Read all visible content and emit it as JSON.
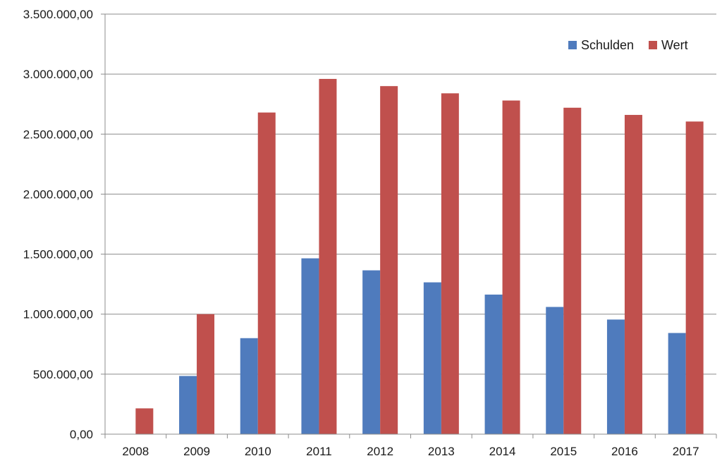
{
  "chart_data": {
    "type": "bar",
    "title": "",
    "xlabel": "",
    "ylabel": "",
    "categories": [
      "2008",
      "2009",
      "2010",
      "2011",
      "2012",
      "2013",
      "2014",
      "2015",
      "2016",
      "2017"
    ],
    "series": [
      {
        "name": "Schulden",
        "color": "#4f7bbd",
        "values": [
          0,
          485000,
          800000,
          1465000,
          1365000,
          1265000,
          1163000,
          1060000,
          955000,
          843000
        ]
      },
      {
        "name": "Wert",
        "color": "#c0504d",
        "values": [
          215000,
          1000000,
          2680000,
          2960000,
          2900000,
          2840000,
          2780000,
          2720000,
          2660000,
          2605000
        ]
      }
    ],
    "ylim": [
      0,
      3500000
    ],
    "yticks": [
      0,
      500000,
      1000000,
      1500000,
      2000000,
      2500000,
      3000000,
      3500000
    ],
    "ytick_labels": [
      "0,00",
      "500.000,00",
      "1.000.000,00",
      "1.500.000,00",
      "2.000.000,00",
      "2.500.000,00",
      "3.000.000,00",
      "3.500.000,00"
    ],
    "grid": true,
    "legend_position": "top-right"
  }
}
